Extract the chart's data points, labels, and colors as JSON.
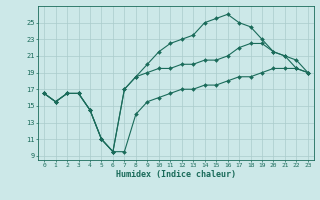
{
  "xlabel": "Humidex (Indice chaleur)",
  "background_color": "#cce8e8",
  "grid_color": "#aacccc",
  "line_color": "#1a6b5a",
  "xlim": [
    -0.5,
    23.5
  ],
  "ylim": [
    8.5,
    27
  ],
  "xticks": [
    0,
    1,
    2,
    3,
    4,
    5,
    6,
    7,
    8,
    9,
    10,
    11,
    12,
    13,
    14,
    15,
    16,
    17,
    18,
    19,
    20,
    21,
    22,
    23
  ],
  "yticks": [
    9,
    11,
    13,
    15,
    17,
    19,
    21,
    23,
    25
  ],
  "line_bottom_x": [
    0,
    1,
    2,
    3,
    4,
    5,
    6,
    7,
    8,
    9,
    10,
    11,
    12,
    13,
    14,
    15,
    16,
    17,
    18,
    19,
    20,
    21,
    22,
    23
  ],
  "line_bottom_y": [
    16.5,
    15.5,
    16.5,
    16.5,
    14.5,
    11.0,
    9.5,
    9.5,
    14.0,
    15.5,
    16.0,
    16.5,
    17.0,
    17.0,
    17.5,
    17.5,
    18.0,
    18.5,
    18.5,
    19.0,
    19.5,
    19.5,
    19.5,
    19.0
  ],
  "line_top_x": [
    0,
    1,
    2,
    3,
    4,
    5,
    6,
    7,
    8,
    9,
    10,
    11,
    12,
    13,
    14,
    15,
    16,
    17,
    18,
    19,
    20,
    21,
    22,
    23
  ],
  "line_top_y": [
    16.5,
    15.5,
    16.5,
    16.5,
    14.5,
    11.0,
    9.5,
    17.0,
    18.5,
    20.0,
    21.5,
    22.5,
    23.0,
    23.5,
    25.0,
    25.5,
    26.0,
    25.0,
    24.5,
    23.0,
    21.5,
    21.0,
    20.5,
    19.0
  ],
  "line_mid_x": [
    0,
    1,
    2,
    3,
    4,
    5,
    6,
    7,
    8,
    9,
    10,
    11,
    12,
    13,
    14,
    15,
    16,
    17,
    18,
    19,
    20,
    21,
    22,
    23
  ],
  "line_mid_y": [
    16.5,
    15.5,
    16.5,
    16.5,
    14.5,
    11.0,
    9.5,
    17.0,
    18.5,
    19.0,
    19.5,
    19.5,
    20.0,
    20.0,
    20.5,
    20.5,
    21.0,
    22.0,
    22.5,
    22.5,
    21.5,
    21.0,
    19.5,
    19.0
  ]
}
